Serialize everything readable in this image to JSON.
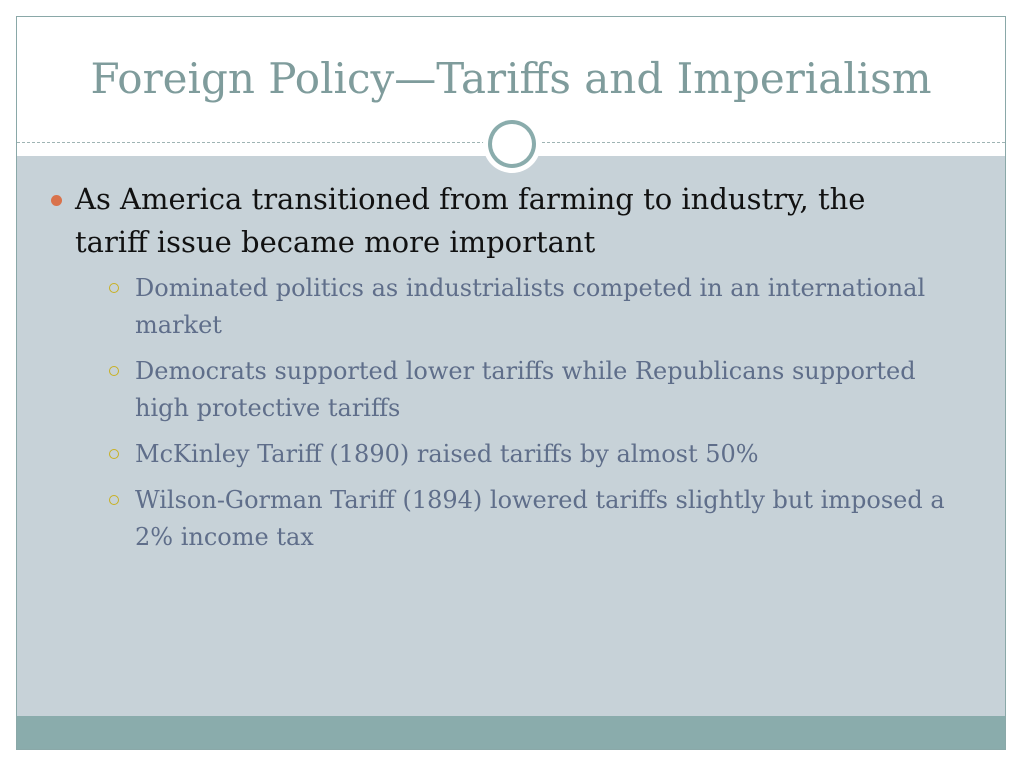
{
  "slide": {
    "title": "Foreign Policy—Tariffs and Imperialism",
    "bullets": [
      {
        "text": "As America transitioned from farming to industry, the tariff issue became more important",
        "subbullets": [
          "Dominated politics as industrialists competed in an international market",
          "Democrats supported lower tariffs while Republicans supported high protective tariffs",
          "McKinley Tariff (1890) raised tariffs by almost 50%",
          "Wilson-Gorman Tariff (1894) lowered tariffs slightly but imposed a 2% income tax"
        ]
      }
    ]
  },
  "colors": {
    "title": "#7f9c9c",
    "content_background": "#c7d2d8",
    "footer_bar": "#8aacac",
    "bullet_level1": "#d9724b",
    "bullet_level2": "#c8b022",
    "subtext": "#5f6e8a"
  },
  "icons": {
    "bullet_level1": "filled-circle-bullet",
    "bullet_level2": "hollow-circle-bullet",
    "ornament": "double-ring-ornament"
  }
}
